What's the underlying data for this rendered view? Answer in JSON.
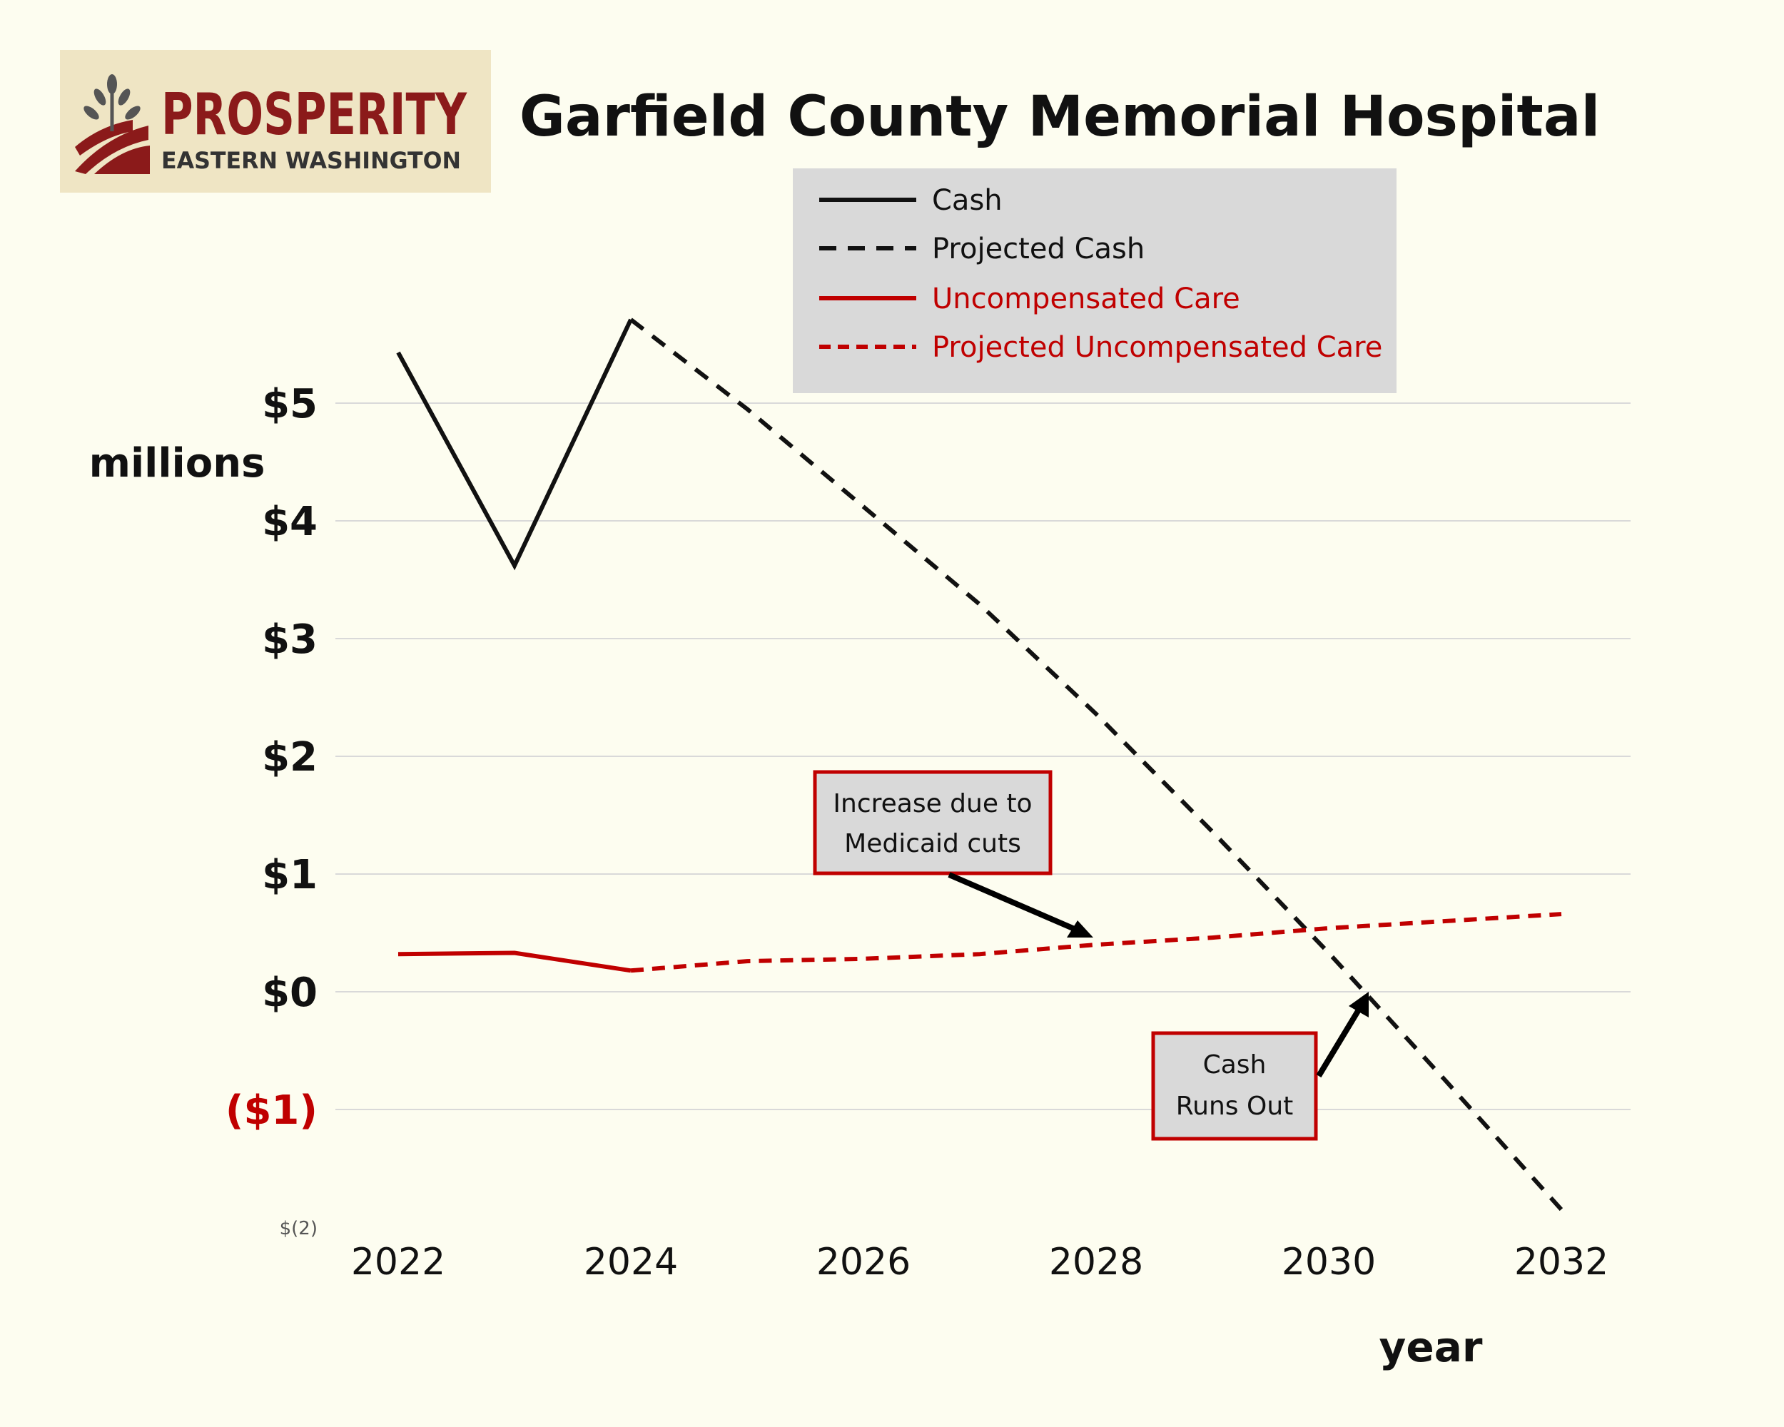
{
  "logo": {
    "brand": "PROSPERITY",
    "tagline": "EASTERN WASHINGTON",
    "brand_color": "#8b1a1a",
    "background": "#efe5c4"
  },
  "chart_data": {
    "type": "line",
    "title": "Garfield County Memorial Hospital",
    "ylabel": "millions",
    "xlabel": "year",
    "ylim": [
      -2,
      6
    ],
    "xlim": [
      2022,
      2032
    ],
    "grid": true,
    "legend_position": "top-center",
    "y_ticks": [
      {
        "value": 5,
        "label": "$5",
        "style": "bold"
      },
      {
        "value": 4,
        "label": "$4",
        "style": "bold"
      },
      {
        "value": 3,
        "label": "$3",
        "style": "bold"
      },
      {
        "value": 2,
        "label": "$2",
        "style": "bold"
      },
      {
        "value": 1,
        "label": "$1",
        "style": "bold"
      },
      {
        "value": 0,
        "label": "$0",
        "style": "bold"
      },
      {
        "value": -1,
        "label": "($1)",
        "style": "negative"
      },
      {
        "value": -2,
        "label": "$(2)",
        "style": "small"
      }
    ],
    "x_ticks": [
      {
        "value": 2022,
        "label": "2022"
      },
      {
        "value": 2024,
        "label": "2024"
      },
      {
        "value": 2026,
        "label": "2026"
      },
      {
        "value": 2028,
        "label": "2028"
      },
      {
        "value": 2030,
        "label": "2030"
      },
      {
        "value": 2032,
        "label": "2032"
      }
    ],
    "series": [
      {
        "name": "Cash",
        "color": "#111111",
        "dashed": false,
        "x": [
          2022,
          2023,
          2024
        ],
        "y": [
          5.43,
          3.62,
          5.71
        ]
      },
      {
        "name": "Projected Cash",
        "color": "#111111",
        "dashed": true,
        "x": [
          2024,
          2025,
          2026,
          2027,
          2028,
          2029,
          2030,
          2031,
          2032
        ],
        "y": [
          5.71,
          4.95,
          4.12,
          3.29,
          2.36,
          1.36,
          0.33,
          -0.75,
          -1.85
        ]
      },
      {
        "name": "Uncompensated Care",
        "color": "#c00000",
        "dashed": false,
        "x": [
          2022,
          2023,
          2024
        ],
        "y": [
          0.32,
          0.33,
          0.18
        ]
      },
      {
        "name": "Projected Uncompensated Care",
        "color": "#c00000",
        "dashed": true,
        "x": [
          2024,
          2025,
          2026,
          2027,
          2028,
          2029,
          2030,
          2031,
          2032
        ],
        "y": [
          0.18,
          0.26,
          0.28,
          0.32,
          0.4,
          0.46,
          0.54,
          0.6,
          0.66
        ]
      }
    ],
    "annotations": [
      {
        "text_lines": [
          "Increase due to",
          "Medicaid cuts"
        ],
        "target_x": 2028.0,
        "target_y": 0.44
      },
      {
        "text_lines": [
          "Cash",
          "Runs Out"
        ],
        "target_x": 2030.3,
        "target_y": 0.0
      }
    ],
    "colors": {
      "legend_bg": "#d9d9d9",
      "annotation_border": "#c00000",
      "annotation_bg": "#d9d9d9",
      "grid": "#d9d9d9",
      "negative_tick": "#c00000"
    }
  }
}
